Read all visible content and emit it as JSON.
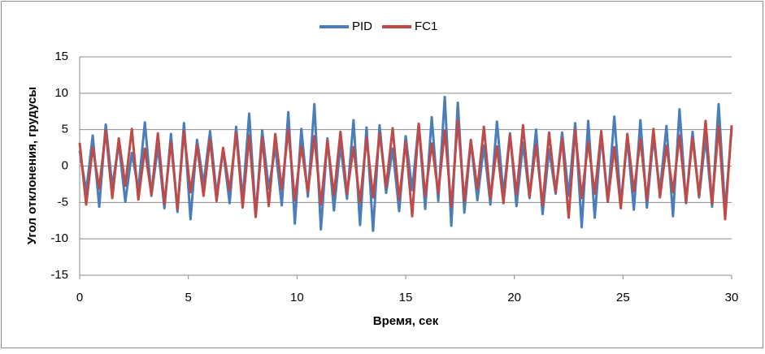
{
  "chart_data": {
    "type": "line",
    "x_label": "Время, сек",
    "y_label": "Угол отклонения, грудусы",
    "x": [
      0,
      0.3,
      0.6,
      0.9,
      1.2,
      1.5,
      1.8,
      2.1,
      2.4,
      2.7,
      3,
      3.3,
      3.6,
      3.9,
      4.2,
      4.5,
      4.8,
      5.1,
      5.4,
      5.7,
      6,
      6.3,
      6.6,
      6.9,
      7.2,
      7.5,
      7.8,
      8.1,
      8.4,
      8.7,
      9,
      9.3,
      9.6,
      9.9,
      10.2,
      10.5,
      10.8,
      11.1,
      11.4,
      11.7,
      12,
      12.3,
      12.6,
      12.9,
      13.2,
      13.5,
      13.8,
      14.1,
      14.4,
      14.7,
      15,
      15.3,
      15.6,
      15.9,
      16.2,
      16.5,
      16.8,
      17.1,
      17.4,
      17.7,
      18,
      18.3,
      18.6,
      18.9,
      19.2,
      19.5,
      19.8,
      20.1,
      20.4,
      20.7,
      21,
      21.3,
      21.6,
      21.9,
      22.2,
      22.5,
      22.8,
      23.1,
      23.4,
      23.7,
      24,
      24.3,
      24.6,
      24.9,
      25.2,
      25.5,
      25.8,
      26.1,
      26.4,
      26.7,
      27,
      27.3,
      27.6,
      27.9,
      28.2,
      28.5,
      28.8,
      29.1,
      29.4,
      29.7,
      30
    ],
    "series": [
      {
        "name": "PID",
        "color": "#4a7ebb",
        "values": [
          2.1,
          -3.5,
          4.2,
          -5.6,
          5.7,
          -2.8,
          3.1,
          -4.9,
          1.8,
          -3.2,
          6.0,
          -4.1,
          2.7,
          -5.8,
          4.4,
          -6.3,
          5.9,
          -7.3,
          3.6,
          -2.5,
          4.8,
          -3.9,
          2.2,
          -5.1,
          5.4,
          -4.6,
          7.2,
          -6.8,
          4.9,
          -3.1,
          2.6,
          -5.4,
          7.4,
          -7.9,
          5.1,
          -4.2,
          8.5,
          -8.7,
          3.8,
          -6.1,
          2.9,
          -4.5,
          6.3,
          -8.1,
          5.3,
          -8.9,
          5.6,
          -3.7,
          2.4,
          -6.2,
          4.1,
          -3.3,
          5.8,
          -5.9,
          6.7,
          -4.8,
          9.5,
          -8.2,
          8.7,
          -6.4,
          3.4,
          -4.7,
          2.8,
          -5.3,
          6.1,
          -3.9,
          4.5,
          -5.5,
          3.2,
          -4.4,
          5.0,
          -6.6,
          2.3,
          -3.8,
          4.6,
          -4.1,
          5.9,
          -8.4,
          6.2,
          -7.1,
          4.3,
          -4.9,
          6.8,
          -5.2,
          3.7,
          -6.0,
          6.3,
          -5.7,
          4.0,
          -3.4,
          5.5,
          -6.9,
          7.8,
          -5.1,
          4.7,
          -4.3,
          3.9,
          -5.6,
          8.5,
          -6.2,
          5.2
        ]
      },
      {
        "name": "FC1",
        "color": "#be4b48",
        "values": [
          3.2,
          -5.3,
          2.6,
          -3.1,
          4.9,
          -4.4,
          3.8,
          -2.7,
          5.1,
          -4.6,
          2.4,
          -3.9,
          4.5,
          -5.2,
          3.3,
          -5.9,
          4.8,
          -3.6,
          2.9,
          -4.1,
          3.7,
          -4.8,
          2.5,
          -3.4,
          4.6,
          -5.7,
          4.2,
          -7.0,
          3.9,
          -5.5,
          4.4,
          -3.2,
          5.0,
          -4.7,
          2.8,
          -3.6,
          4.1,
          -5.3,
          3.5,
          -4.0,
          4.7,
          -3.8,
          2.6,
          -5.0,
          3.9,
          -4.3,
          4.5,
          -2.9,
          5.2,
          -4.6,
          3.4,
          -6.9,
          5.8,
          -4.1,
          3.1,
          -3.7,
          4.9,
          -5.6,
          6.3,
          -4.8,
          3.6,
          -3.2,
          5.4,
          -4.5,
          2.7,
          -5.1,
          4.3,
          -3.9,
          5.6,
          -4.2,
          2.9,
          -5.4,
          4.6,
          -3.6,
          3.8,
          -7.1,
          5.0,
          -4.4,
          3.3,
          -3.8,
          4.8,
          -4.9,
          2.6,
          -5.8,
          4.4,
          -3.5,
          3.7,
          -4.7,
          5.1,
          -4.3,
          2.8,
          -3.6,
          4.2,
          -5.0,
          3.9,
          -4.1,
          6.2,
          -5.2,
          5.5,
          -7.3,
          5.6
        ]
      }
    ],
    "xlim": [
      0,
      30
    ],
    "xticks": [
      0,
      5,
      10,
      15,
      20,
      25,
      30
    ],
    "ylim": [
      -15,
      15
    ],
    "yticks": [
      -15,
      -10,
      -5,
      0,
      5,
      10,
      15
    ],
    "grid": true,
    "legend": "top"
  }
}
